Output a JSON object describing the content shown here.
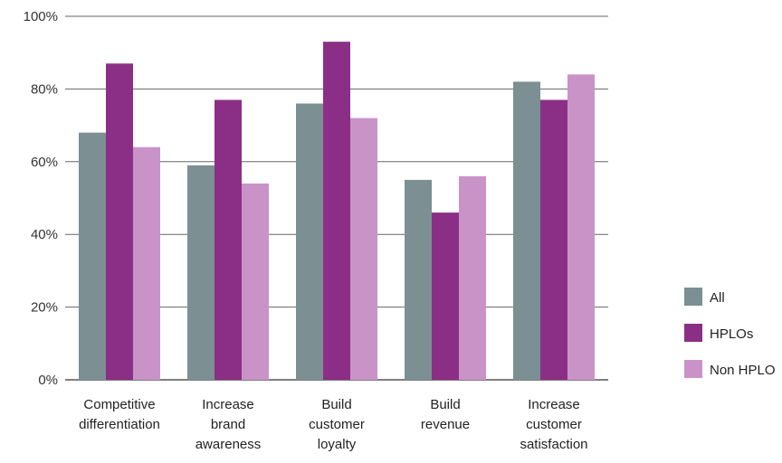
{
  "chart_data": {
    "type": "bar",
    "categories": [
      [
        "Competitive",
        "differentiation"
      ],
      [
        "Increase",
        "brand",
        "awareness"
      ],
      [
        "Build",
        "customer",
        "loyalty"
      ],
      [
        "Build",
        "revenue"
      ],
      [
        "Increase",
        "customer",
        "satisfaction"
      ]
    ],
    "series": [
      {
        "name": "All",
        "color": "#7c8f93",
        "values": [
          68,
          59,
          76,
          55,
          82
        ]
      },
      {
        "name": "HPLOs",
        "color": "#8b2f86",
        "values": [
          87,
          77,
          93,
          46,
          77
        ]
      },
      {
        "name": "Non HPLO",
        "color": "#c993c8",
        "values": [
          64,
          54,
          72,
          56,
          84
        ]
      }
    ],
    "yticks": [
      "0%",
      "20%",
      "40%",
      "60%",
      "80%",
      "100%"
    ],
    "ylim": [
      0,
      100
    ],
    "grid": true,
    "legend_position": "right",
    "title": "",
    "xlabel": "",
    "ylabel": ""
  }
}
